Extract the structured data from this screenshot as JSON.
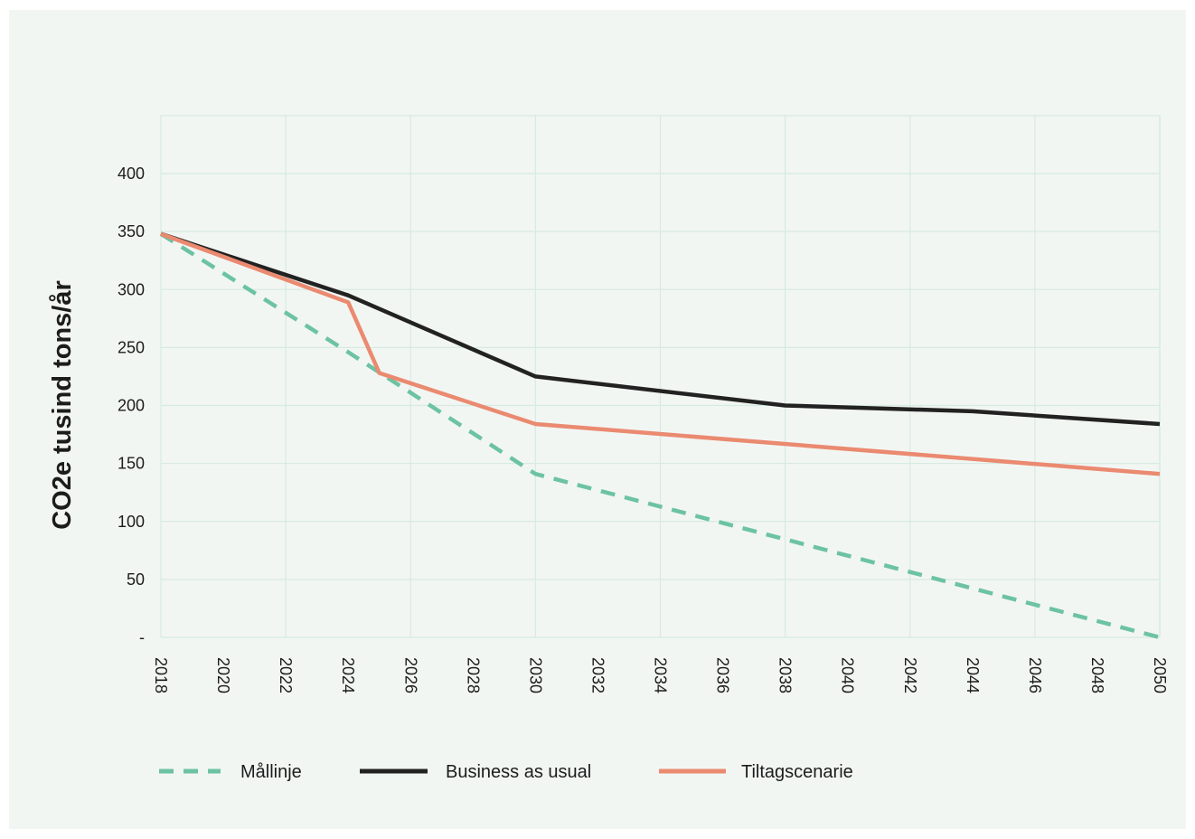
{
  "chart_data": {
    "type": "line",
    "xlabel": "",
    "ylabel": "CO2e tusind tons/år",
    "xlim": [
      2018,
      2050
    ],
    "ylim": [
      0,
      450
    ],
    "x_ticks": [
      "2018",
      "2020",
      "2022",
      "2024",
      "2026",
      "2028",
      "2030",
      "2032",
      "2034",
      "2036",
      "2038",
      "2040",
      "2042",
      "2044",
      "2046",
      "2048",
      "2050"
    ],
    "y_ticks": [
      {
        "value": 0,
        "label": "-"
      },
      {
        "value": 50,
        "label": "50"
      },
      {
        "value": 100,
        "label": "100"
      },
      {
        "value": 150,
        "label": "150"
      },
      {
        "value": 200,
        "label": "200"
      },
      {
        "value": 250,
        "label": "250"
      },
      {
        "value": 300,
        "label": "300"
      },
      {
        "value": 350,
        "label": "350"
      },
      {
        "value": 400,
        "label": "400"
      }
    ],
    "grid": true,
    "legend_position": "bottom",
    "series": [
      {
        "name": "Mållinje",
        "color": "#6cc3a3",
        "style": "dashed",
        "points": [
          [
            2018,
            348
          ],
          [
            2024,
            246
          ],
          [
            2030,
            141
          ],
          [
            2050,
            0
          ]
        ]
      },
      {
        "name": "Business as usual",
        "color": "#222222",
        "style": "solid",
        "points": [
          [
            2018,
            348
          ],
          [
            2024,
            295
          ],
          [
            2030,
            225
          ],
          [
            2038,
            200
          ],
          [
            2044,
            195
          ],
          [
            2050,
            184
          ]
        ]
      },
      {
        "name": "Tiltagscenarie",
        "color": "#ea8a70",
        "style": "solid",
        "points": [
          [
            2018,
            348
          ],
          [
            2024,
            289
          ],
          [
            2025,
            228
          ],
          [
            2030,
            184
          ],
          [
            2050,
            141
          ]
        ]
      }
    ]
  }
}
